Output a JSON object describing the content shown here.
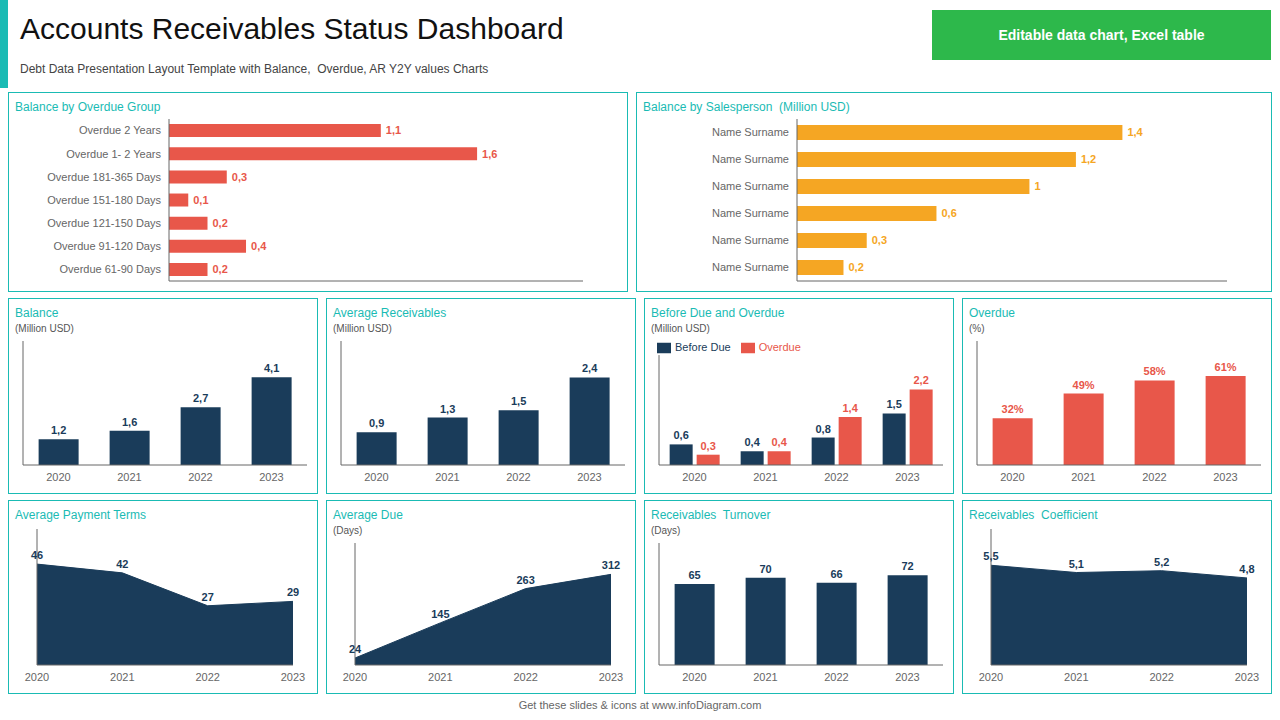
{
  "title": "Accounts Receivables Status Dashboard",
  "subtitle": "Debt Data Presentation Layout Template with Balance,  Overdue, AR Y2Y values Charts",
  "annotations": [
    "Editable data chart, Excel table",
    "Get these slides & icons at www.infoDiagram.com"
  ],
  "chart_data": [
    {
      "type": "bar",
      "orientation": "horizontal",
      "title": "Balance by Overdue Group",
      "categories": [
        "Overdue 2 Years",
        "Overdue 1- 2 Years",
        "Overdue 181-365 Days",
        "Overdue 151-180 Days",
        "Overdue 121-150 Days",
        "Overdue 91-120 Days",
        "Overdue 61-90 Days"
      ],
      "values": [
        1.1,
        1.6,
        0.3,
        0.1,
        0.2,
        0.4,
        0.2
      ],
      "value_labels": [
        "1,1",
        "1,6",
        "0,3",
        "0,1",
        "0,2",
        "0,4",
        "0,2"
      ],
      "color": "#E8574A",
      "xlim": [
        0,
        2.15
      ],
      "data_labels": true,
      "tick_labels": "y",
      "grid": false
    },
    {
      "type": "bar",
      "orientation": "horizontal",
      "title": "Balance by Salesperson",
      "subtitle": "(Million USD)",
      "categories": [
        "Name Surname",
        "Name Surname",
        "Name Surname",
        "Name Surname",
        "Name Surname",
        "Name Surname"
      ],
      "values": [
        1.4,
        1.2,
        1.0,
        0.6,
        0.3,
        0.2
      ],
      "value_labels": [
        "1,4",
        "1,2",
        "1",
        "0,6",
        "0,3",
        "0,2"
      ],
      "color": "#F5A623",
      "xlim": [
        0,
        1.85
      ],
      "data_labels": true,
      "tick_labels": "y",
      "grid": false
    },
    {
      "type": "bar",
      "title": "Balance",
      "subtitle": "(Million USD)",
      "categories": [
        "2020",
        "2021",
        "2022",
        "2023"
      ],
      "values": [
        1.2,
        1.6,
        2.7,
        4.1
      ],
      "value_labels": [
        "1,2",
        "1,6",
        "2,7",
        "4,1"
      ],
      "color": "#1A3C5A",
      "ylim": [
        0,
        5.8
      ],
      "data_labels": true,
      "tick_labels": "x",
      "grid": false
    },
    {
      "type": "bar",
      "title": "Average Receivables",
      "subtitle": "(Million USD)",
      "categories": [
        "2020",
        "2021",
        "2022",
        "2023"
      ],
      "values": [
        0.9,
        1.3,
        1.5,
        2.4
      ],
      "value_labels": [
        "0,9",
        "1,3",
        "1,5",
        "2,4"
      ],
      "color": "#1A3C5A",
      "ylim": [
        0,
        3.4
      ],
      "data_labels": true,
      "tick_labels": "x",
      "grid": false
    },
    {
      "type": "bar",
      "title": "Before Due and Overdue",
      "subtitle": "(Million USD)",
      "categories": [
        "2020",
        "2021",
        "2022",
        "2023"
      ],
      "series": [
        {
          "name": "Before Due",
          "color": "#1A3C5A",
          "values": [
            0.6,
            0.4,
            0.8,
            1.5
          ],
          "value_labels": [
            "0,6",
            "0,4",
            "0,8",
            "1,5"
          ]
        },
        {
          "name": "Overdue",
          "color": "#E8574A",
          "values": [
            0.3,
            0.4,
            1.4,
            2.2
          ],
          "value_labels": [
            "0,3",
            "0,4",
            "1,4",
            "2,2"
          ]
        }
      ],
      "ylim": [
        0,
        3.2
      ],
      "legend": "upper left",
      "data_labels": true,
      "tick_labels": "x",
      "grid": false
    },
    {
      "type": "bar",
      "title": "Overdue",
      "subtitle": "(%)",
      "categories": [
        "2020",
        "2021",
        "2022",
        "2023"
      ],
      "values": [
        32,
        49,
        58,
        61
      ],
      "value_labels": [
        "32%",
        "49%",
        "58%",
        "61%"
      ],
      "color": "#E8574A",
      "ylim": [
        0,
        85
      ],
      "data_labels": true,
      "tick_labels": "x",
      "grid": false
    },
    {
      "type": "area",
      "title": "Average Payment Terms",
      "categories": [
        "2020",
        "2021",
        "2022",
        "2023"
      ],
      "values": [
        46,
        42,
        27,
        29
      ],
      "color": "#1A3C5A",
      "ylim": [
        0,
        62
      ],
      "data_labels": true,
      "tick_labels": "x",
      "grid": false
    },
    {
      "type": "area",
      "title": "Average Due",
      "subtitle": "(Days)",
      "categories": [
        "2020",
        "2021",
        "2022",
        "2023"
      ],
      "values": [
        24,
        145,
        263,
        312
      ],
      "color": "#1A3C5A",
      "ylim": [
        0,
        420
      ],
      "data_labels": true,
      "tick_labels": "x",
      "grid": false
    },
    {
      "type": "bar",
      "title": "Receivables  Turnover",
      "subtitle": "(Days)",
      "categories": [
        "2020",
        "2021",
        "2022",
        "2023"
      ],
      "values": [
        65,
        70,
        66,
        72
      ],
      "color": "#1A3C5A",
      "ylim": [
        0,
        98
      ],
      "data_labels": true,
      "tick_labels": "x",
      "grid": false
    },
    {
      "type": "area",
      "title": "Receivables  Coefficient",
      "categories": [
        "2020",
        "2021",
        "2022",
        "2023"
      ],
      "values": [
        5.5,
        5.1,
        5.2,
        4.8
      ],
      "value_labels": [
        "5,5",
        "5,1",
        "5,2",
        "4,8"
      ],
      "color": "#1A3C5A",
      "ylim": [
        0,
        7.5
      ],
      "data_labels": true,
      "tick_labels": "x",
      "grid": false
    }
  ]
}
